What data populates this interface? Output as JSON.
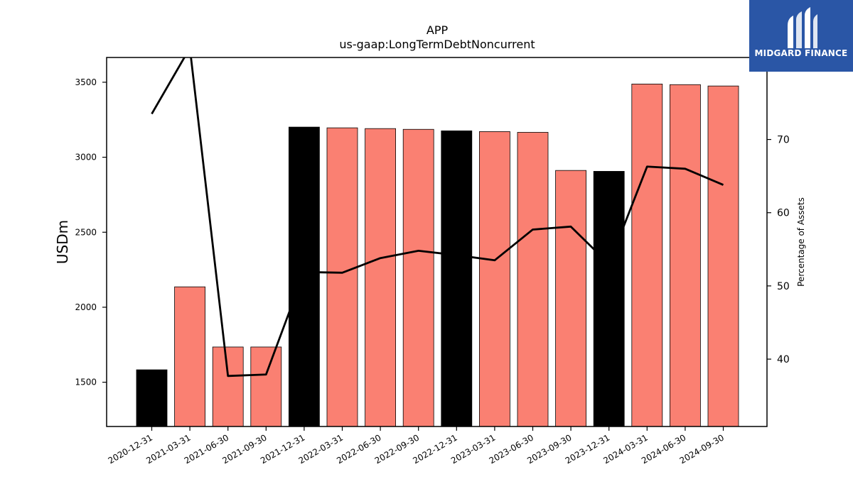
{
  "chart_data": {
    "type": "bar",
    "title": "APP",
    "subtitle": "us-gaap:LongTermDebtNoncurrent",
    "ylabel": "USDm",
    "y2label": "Percentage of Assets",
    "ylim": [
      1205,
      3665
    ],
    "y2lim": [
      30.8,
      81.2
    ],
    "yticks": [
      1500,
      2000,
      2500,
      3000,
      3500
    ],
    "y2ticks": [
      40,
      50,
      60,
      70
    ],
    "categories": [
      "2020-12-31",
      "2021-03-31",
      "2021-06-30",
      "2021-09-30",
      "2021-12-31",
      "2022-03-31",
      "2022-06-30",
      "2022-09-30",
      "2022-12-31",
      "2023-03-31",
      "2023-06-30",
      "2023-09-30",
      "2023-12-31",
      "2024-03-31",
      "2024-06-30",
      "2024-09-30"
    ],
    "series": [
      {
        "type": "bar",
        "values": [
          1583,
          2136,
          1735,
          1735,
          3201,
          3196,
          3191,
          3186,
          3176,
          3171,
          3166,
          2912,
          2906,
          3488,
          3484,
          3475
        ],
        "colors": [
          "#000000",
          "#fa8072",
          "#fa8072",
          "#fa8072",
          "#000000",
          "#fa8072",
          "#fa8072",
          "#fa8072",
          "#000000",
          "#fa8072",
          "#fa8072",
          "#fa8072",
          "#000000",
          "#fa8072",
          "#fa8072",
          "#fa8072"
        ]
      },
      {
        "type": "line",
        "axis": "right",
        "values": [
          73.5,
          82.5,
          37.7,
          37.9,
          51.9,
          51.8,
          53.8,
          54.8,
          54.2,
          53.5,
          57.7,
          58.1,
          53.0,
          66.3,
          66.0,
          63.8
        ],
        "color": "#000000"
      }
    ]
  },
  "logo": {
    "text": "MIDGARD FINANCE",
    "background": "#2a56a6"
  }
}
